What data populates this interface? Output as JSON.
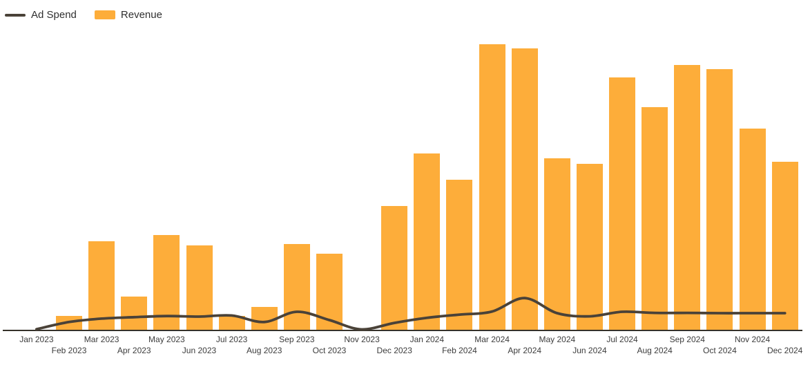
{
  "chart_data": {
    "type": "combo",
    "categories": [
      "Jan 2023",
      "Feb 2023",
      "Mar 2023",
      "Apr 2023",
      "May 2023",
      "Jun 2023",
      "Jul 2023",
      "Aug 2023",
      "Sep 2023",
      "Oct 2023",
      "Nov 2023",
      "Dec 2023",
      "Jan 2024",
      "Feb 2024",
      "Mar 2024",
      "Apr 2024",
      "May 2024",
      "Jun 2024",
      "Jul 2024",
      "Aug 2024",
      "Sep 2024",
      "Oct 2024",
      "Nov 2024",
      "Dec 2024"
    ],
    "series": [
      {
        "name": "Ad Spend",
        "type": "line",
        "color": "#4A4238",
        "values": [
          0.2,
          2.7,
          3.9,
          4.4,
          4.8,
          4.6,
          5.0,
          2.7,
          6.3,
          3.4,
          0,
          2.4,
          4.2,
          5.3,
          6.4,
          11.1,
          5.8,
          4.7,
          6.3,
          5.9,
          5.9,
          5.8,
          5.8,
          5.8
        ]
      },
      {
        "name": "Revenue",
        "type": "bar",
        "color": "#FDAD3A",
        "values": [
          0,
          4.9,
          31.0,
          11.6,
          33.2,
          29.5,
          4.8,
          8.1,
          30.1,
          26.7,
          0,
          43.4,
          61.8,
          52.5,
          100,
          98.5,
          60.0,
          58.2,
          88.4,
          78.0,
          92.7,
          91.3,
          70.5,
          58.8
        ]
      }
    ],
    "title": "",
    "xlabel": "",
    "ylabel": "",
    "ylim": [
      0,
      105
    ],
    "y_axis_visible": false,
    "grid": false,
    "legend_position": "top-left",
    "x_labels_staggered": true,
    "axis_line_color": "#35312a",
    "x_label_color": "#3c3c3c"
  }
}
